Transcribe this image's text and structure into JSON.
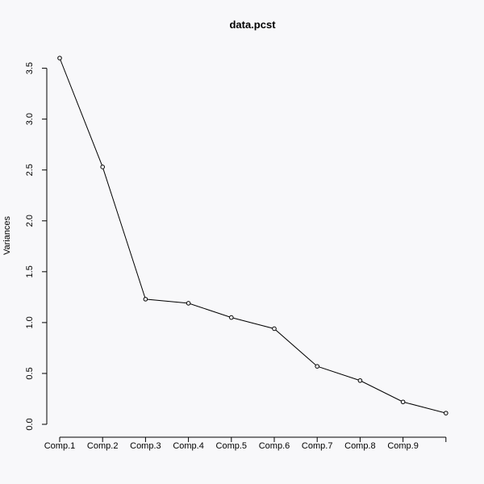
{
  "chart_data": {
    "type": "line",
    "title": "data.pcst",
    "xlabel": "",
    "ylabel": "Variances",
    "categories": [
      "Comp.1",
      "Comp.2",
      "Comp.3",
      "Comp.4",
      "Comp.5",
      "Comp.6",
      "Comp.7",
      "Comp.8",
      "Comp.9",
      ""
    ],
    "x_tick_labels": [
      "Comp.1",
      "Comp.2",
      "Comp.3",
      "Comp.4",
      "Comp.5",
      "Comp.6",
      "Comp.7",
      "Comp.8",
      "Comp.9"
    ],
    "values": [
      3.6,
      2.53,
      1.23,
      1.19,
      1.05,
      0.94,
      0.57,
      0.43,
      0.22,
      0.11
    ],
    "ylim": [
      0,
      3.6
    ],
    "y_ticks": [
      "0.0",
      "0.5",
      "1.0",
      "1.5",
      "2.0",
      "2.5",
      "3.0",
      "3.5"
    ],
    "markers": "open-circle",
    "grid": false,
    "colors": {
      "background": "#f8f8fa",
      "line": "#000000"
    }
  }
}
